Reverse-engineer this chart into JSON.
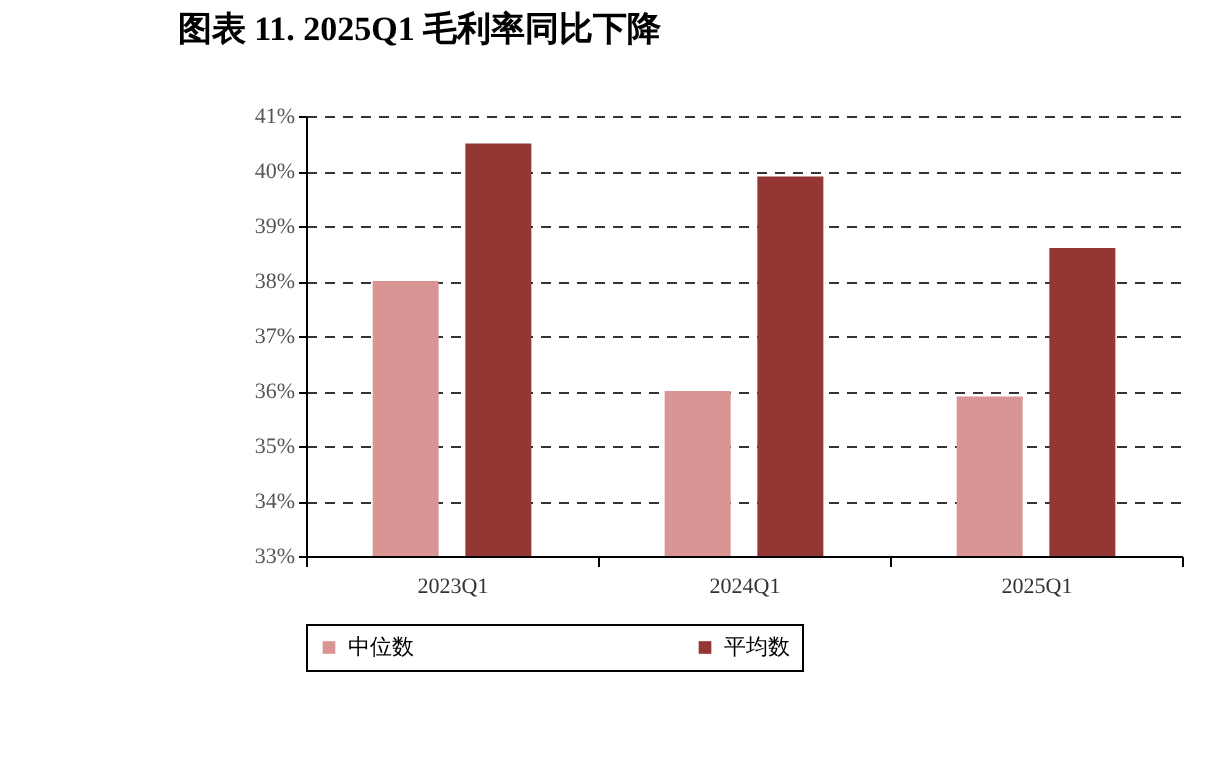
{
  "chart_data": {
    "type": "bar",
    "title": "图表 11. 2025Q1 毛利率同比下降",
    "categories": [
      "2023Q1",
      "2024Q1",
      "2025Q1"
    ],
    "series": [
      {
        "name": "中位数",
        "color": "#d99594",
        "values": [
          38.0,
          36.0,
          35.9
        ]
      },
      {
        "name": "平均数",
        "color": "#943634",
        "values": [
          40.5,
          39.9,
          38.6
        ]
      }
    ],
    "ylim": [
      33,
      41
    ],
    "yticks": [
      {
        "value": 33,
        "label": "33%"
      },
      {
        "value": 34,
        "label": "34%"
      },
      {
        "value": 35,
        "label": "35%"
      },
      {
        "value": 36,
        "label": "36%"
      },
      {
        "value": 37,
        "label": "37%"
      },
      {
        "value": 38,
        "label": "38%"
      },
      {
        "value": 39,
        "label": "39%"
      },
      {
        "value": 40,
        "label": "40%"
      },
      {
        "value": 41,
        "label": "41%"
      }
    ],
    "grid": "y",
    "legend": "bottom"
  }
}
